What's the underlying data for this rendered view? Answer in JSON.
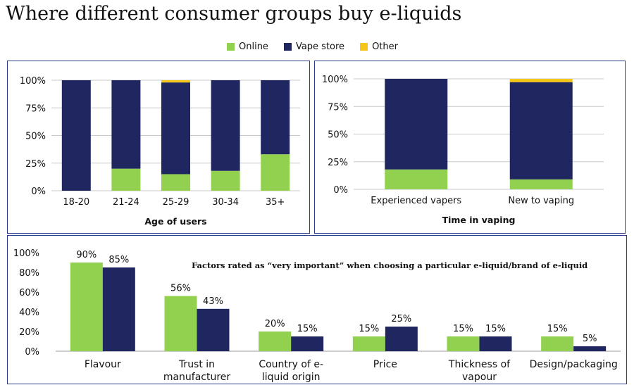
{
  "title": "Where different consumer groups buy e-liquids",
  "legend": {
    "items": [
      {
        "label": "Online",
        "color": "#92d050"
      },
      {
        "label": "Vape store",
        "color": "#1f2660"
      },
      {
        "label": "Other",
        "color": "#f5c518"
      }
    ]
  },
  "chart_data": [
    {
      "type": "bar",
      "stacked": true,
      "categories": [
        "18-20",
        "21-24",
        "25-29",
        "30-34",
        "35+"
      ],
      "series": [
        {
          "name": "Online",
          "values": [
            0,
            20,
            15,
            18,
            33
          ],
          "color": "#92d050"
        },
        {
          "name": "Vape store",
          "values": [
            100,
            80,
            83,
            82,
            67
          ],
          "color": "#1f2660"
        },
        {
          "name": "Other",
          "values": [
            0,
            0,
            2,
            0,
            0
          ],
          "color": "#f5c518"
        }
      ],
      "xlabel": "Age of users",
      "ylim": [
        0,
        100
      ],
      "yticks": [
        "0%",
        "25%",
        "50%",
        "75%",
        "100%"
      ],
      "grid": true
    },
    {
      "type": "bar",
      "stacked": true,
      "categories": [
        "Experienced vapers",
        "New to vaping"
      ],
      "series": [
        {
          "name": "Online",
          "values": [
            18,
            9
          ],
          "color": "#92d050"
        },
        {
          "name": "Vape store",
          "values": [
            82,
            88
          ],
          "color": "#1f2660"
        },
        {
          "name": "Other",
          "values": [
            0,
            3
          ],
          "color": "#f5c518"
        }
      ],
      "xlabel": "Time in vaping",
      "ylim": [
        0,
        100
      ],
      "yticks": [
        "0%",
        "25%",
        "50%",
        "75%",
        "100%"
      ],
      "grid": true
    },
    {
      "type": "bar",
      "title": "Factors rated as “very important” when choosing a particular e-liquid/brand of e-liquid",
      "categories": [
        "Flavour",
        "Trust in manufacturer",
        "Country of e-liquid origin",
        "Price",
        "Thickness of vapour",
        "Design/packaging"
      ],
      "category_lines": [
        [
          "Flavour"
        ],
        [
          "Trust in",
          "manufacturer"
        ],
        [
          "Country of e-",
          "liquid origin"
        ],
        [
          "Price"
        ],
        [
          "Thickness of",
          "vapour"
        ],
        [
          "Design/packaging"
        ]
      ],
      "series": [
        {
          "values": [
            90,
            56,
            20,
            15,
            15,
            15
          ],
          "labels": [
            "90%",
            "56%",
            "20%",
            "15%",
            "15%",
            "15%"
          ],
          "color": "#92d050"
        },
        {
          "values": [
            85,
            43,
            15,
            25,
            15,
            5
          ],
          "labels": [
            "85%",
            "43%",
            "15%",
            "25%",
            "15%",
            "5%"
          ],
          "color": "#1f2660"
        }
      ],
      "ylim": [
        0,
        100
      ],
      "yticks": [
        "0%",
        "20%",
        "40%",
        "60%",
        "80%",
        "100%"
      ],
      "grid": false
    }
  ]
}
